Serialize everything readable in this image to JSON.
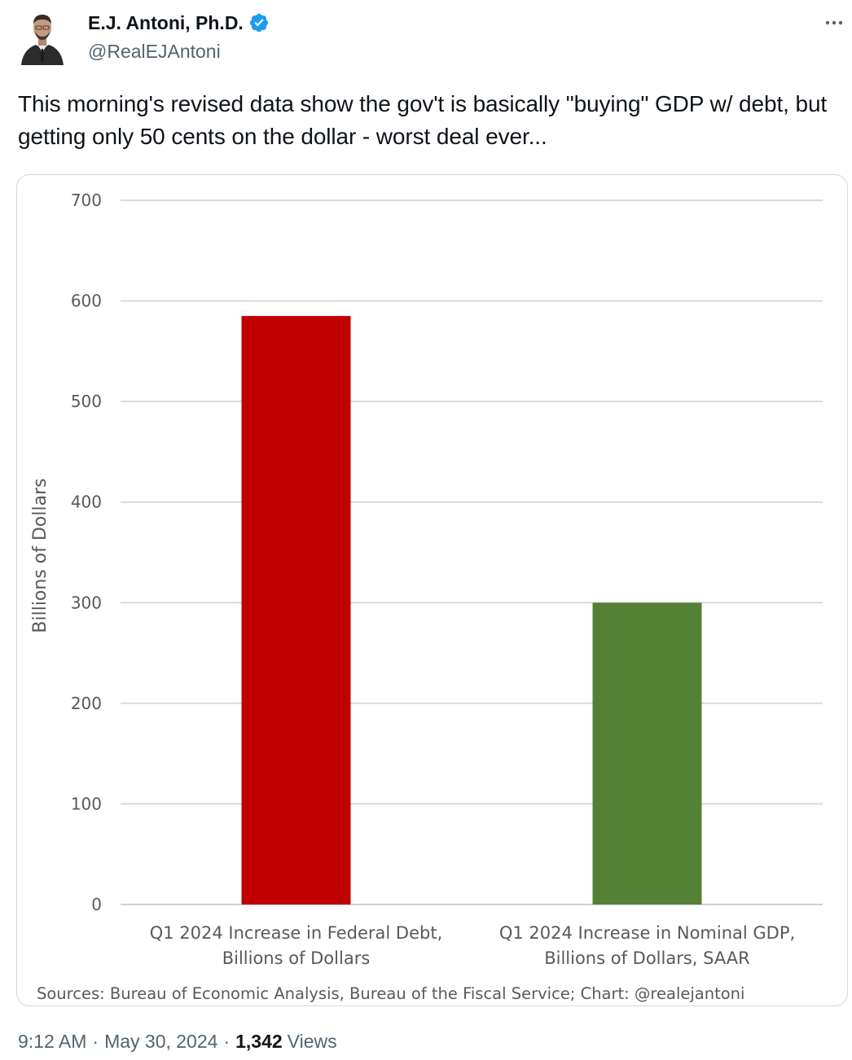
{
  "author": {
    "name": "E.J. Antoni, Ph.D.",
    "handle": "@RealEJAntoni",
    "verified": true,
    "verified_icon": "verified-badge-icon",
    "verified_color": "#1d9bf0"
  },
  "more_icon": "more-horizontal-icon",
  "tweet": {
    "text": "This morning's revised data show the gov't is basically \"buying\" GDP w/ debt, but getting only 50 cents on the dollar - worst deal ever..."
  },
  "meta": {
    "time": "9:12 AM",
    "date": "May 30, 2024",
    "views_count": "1,342",
    "views_label": "Views",
    "separator": "·"
  },
  "chart_data": {
    "type": "bar",
    "categories": [
      [
        "Q1 2024 Increase in Federal Debt,",
        "Billions of Dollars"
      ],
      [
        "Q1 2024 Increase in Nominal GDP,",
        "Billions of Dollars, SAAR"
      ]
    ],
    "values": [
      585,
      300
    ],
    "colors": [
      "#c00000",
      "#548235"
    ],
    "title": "",
    "xlabel": "",
    "ylabel": "Billions of Dollars",
    "ylim": [
      0,
      700
    ],
    "yticks": [
      "0",
      "100",
      "200",
      "300",
      "400",
      "500",
      "600",
      "700"
    ],
    "grid": true,
    "source": "Sources: Bureau of Economic Analysis, Bureau of the Fiscal Service; Chart: @realejantoni"
  }
}
